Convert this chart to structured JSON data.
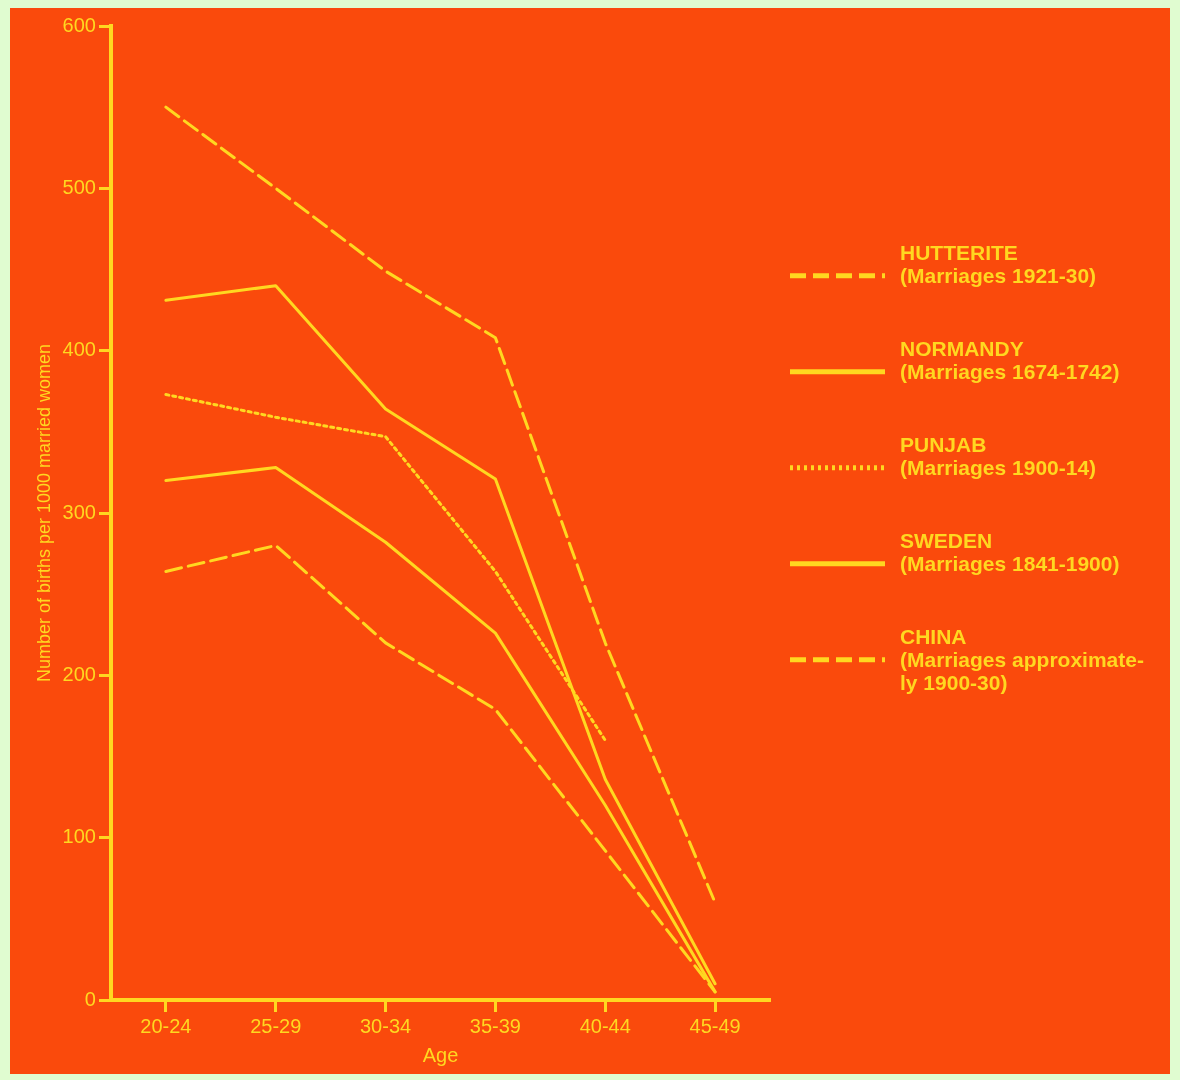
{
  "chart_data": {
    "type": "line",
    "xlabel": "Age",
    "ylabel": "Number of births per 1000 married women",
    "categories": [
      "20-24",
      "25-29",
      "30-34",
      "35-39",
      "40-44",
      "45-49"
    ],
    "series": [
      {
        "name": "HUTTERITE\n(Marriages 1921-30)",
        "color": "#ffd820",
        "line_style": "dashed",
        "values": [
          550,
          500,
          449,
          408,
          220,
          60
        ]
      },
      {
        "name": "NORMANDY\n(Marriages 1674-1742)",
        "color": "#ffd820",
        "line_style": "solid",
        "values": [
          431,
          440,
          364,
          321,
          136,
          10
        ]
      },
      {
        "name": "PUNJAB\n(Marriages 1900-14)",
        "color": "#ffd820",
        "line_style": "dotted",
        "values": [
          373,
          359,
          347,
          264,
          160,
          null
        ]
      },
      {
        "name": "SWEDEN\n(Marriages 1841-1900)",
        "color": "#ffd820",
        "line_style": "solid",
        "values": [
          320,
          328,
          282,
          226,
          120,
          5
        ]
      },
      {
        "name": "CHINA\n(Marriages approximate-\nly 1900-30)",
        "color": "#ffd820",
        "line_style": "dashed",
        "values": [
          264,
          280,
          220,
          179,
          92,
          5
        ]
      }
    ],
    "ylim": [
      0,
      600
    ],
    "yticks": [
      0,
      100,
      200,
      300,
      400,
      500,
      600
    ],
    "grid": false,
    "legend": "right",
    "marker": "none"
  }
}
